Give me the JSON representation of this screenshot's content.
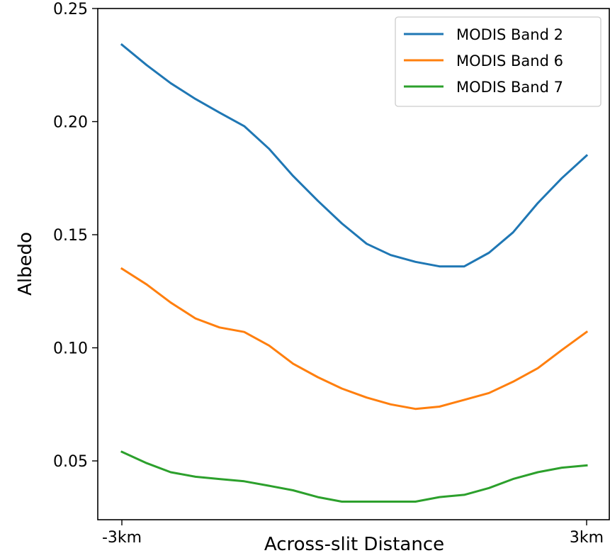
{
  "chart_data": {
    "type": "line",
    "title": "",
    "xlabel": "Across-slit Distance",
    "ylabel": "Albedo",
    "x_tick_labels": [
      "-3km",
      "3km"
    ],
    "xlim": [
      -3,
      3
    ],
    "ylim": [
      0.024,
      0.25
    ],
    "y_ticks": [
      0.05,
      0.1,
      0.15,
      0.2,
      0.25
    ],
    "y_tick_labels": [
      "0.05",
      "0.10",
      "0.15",
      "0.20",
      "0.25"
    ],
    "grid": false,
    "legend_position": "top-right",
    "x": [
      -3.0,
      -2.68,
      -2.37,
      -2.05,
      -1.74,
      -1.42,
      -1.1,
      -0.79,
      -0.47,
      -0.16,
      0.16,
      0.47,
      0.79,
      1.1,
      1.42,
      1.74,
      2.05,
      2.37,
      2.68,
      3.0
    ],
    "series": [
      {
        "name": "MODIS Band 2",
        "color": "#1f77b4",
        "values": [
          0.234,
          0.225,
          0.217,
          0.21,
          0.204,
          0.198,
          0.188,
          0.176,
          0.165,
          0.155,
          0.146,
          0.141,
          0.138,
          0.136,
          0.136,
          0.142,
          0.151,
          0.164,
          0.175,
          0.185
        ]
      },
      {
        "name": "MODIS Band 6",
        "color": "#ff7f0e",
        "values": [
          0.135,
          0.128,
          0.12,
          0.113,
          0.109,
          0.107,
          0.101,
          0.093,
          0.087,
          0.082,
          0.078,
          0.075,
          0.073,
          0.074,
          0.077,
          0.08,
          0.085,
          0.091,
          0.099,
          0.107
        ]
      },
      {
        "name": "MODIS Band 7",
        "color": "#2ca02c",
        "values": [
          0.054,
          0.049,
          0.045,
          0.043,
          0.042,
          0.041,
          0.039,
          0.037,
          0.034,
          0.032,
          0.032,
          0.032,
          0.032,
          0.034,
          0.035,
          0.038,
          0.042,
          0.045,
          0.047,
          0.048
        ]
      }
    ]
  }
}
